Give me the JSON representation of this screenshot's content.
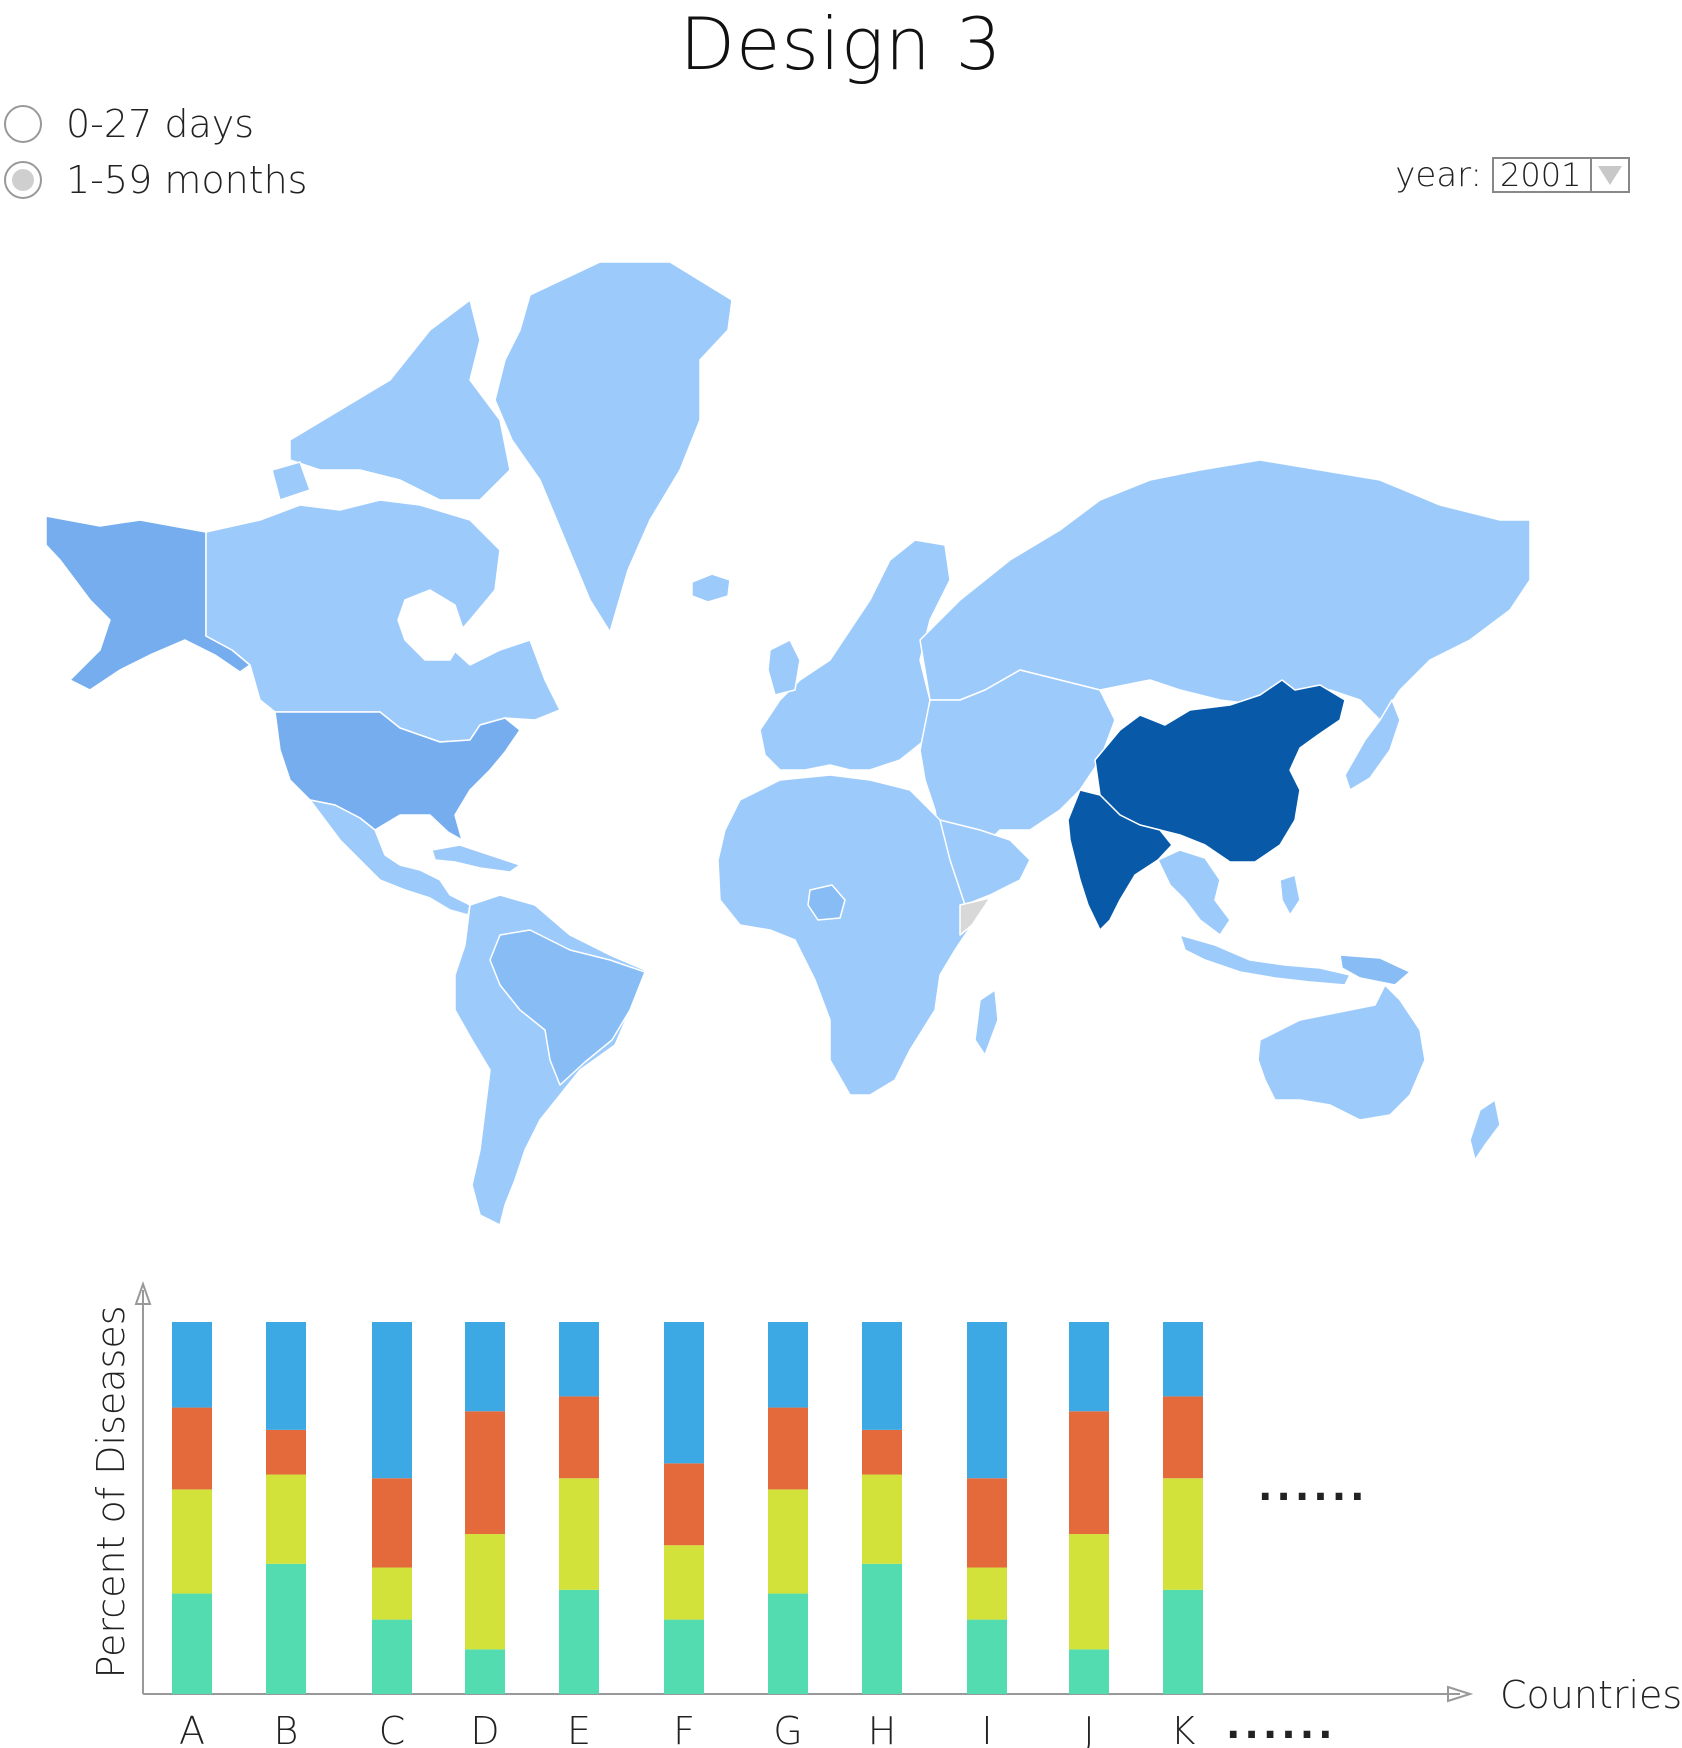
{
  "header": {
    "title": "Design 3"
  },
  "age_filter": {
    "options": [
      {
        "label": "0-27 days",
        "checked": false
      },
      {
        "label": "1-59 months",
        "checked": true
      }
    ]
  },
  "year_selector": {
    "label": "year:",
    "value": "2001",
    "arrow_icon": "triangle-down-icon"
  },
  "map": {
    "colors": {
      "ocean": "#ffffff",
      "light": "#9ccbfb",
      "medium": "#88bcf5",
      "darker": "#75adef",
      "highlight": "#085aa9",
      "border": "#ffffff"
    }
  },
  "chart_data": {
    "type": "bar",
    "stacked": true,
    "categories": [
      "A",
      "B",
      "C",
      "D",
      "E",
      "F",
      "G",
      "H",
      "I",
      "J",
      "K"
    ],
    "ylabel": "Percent of Diseases",
    "xlabel": "Countries",
    "ylim": [
      0,
      100
    ],
    "series": [
      {
        "color": "#52dcaf",
        "values": [
          27,
          35,
          20,
          12,
          28,
          20,
          27,
          35,
          20,
          12,
          28
        ]
      },
      {
        "color": "#d2e23b",
        "values": [
          28,
          24,
          14,
          31,
          30,
          20,
          28,
          24,
          14,
          31,
          30
        ]
      },
      {
        "color": "#e56a3b",
        "values": [
          22,
          12,
          24,
          33,
          22,
          22,
          22,
          12,
          24,
          33,
          22
        ]
      },
      {
        "color": "#3da9e4",
        "values": [
          23,
          29,
          42,
          24,
          20,
          38,
          23,
          29,
          42,
          24,
          20
        ]
      }
    ],
    "ellipsis": "......",
    "axis_color": "#999999"
  }
}
